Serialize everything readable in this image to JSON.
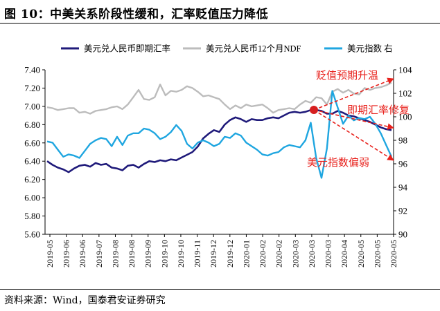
{
  "figure_title": "图 10：中美关系阶段性缓和，汇率贬值压力降低",
  "source_note": "资料来源：Wind，国泰君安证券研究",
  "chart_data": {
    "type": "line",
    "title": "",
    "legend_position": "top",
    "grid": false,
    "x_ticks": [
      "2019-05",
      "2019-06",
      "2019-06",
      "2019-07",
      "2019-08",
      "2019-08",
      "2019-09",
      "2019-10",
      "2019-10",
      "2019-11",
      "2019-12",
      "2019-12",
      "2020-01",
      "2020-02",
      "2020-02",
      "2020-03",
      "2020-03",
      "2020-03",
      "2020-04",
      "2020-05",
      "2020-05",
      "2020-05"
    ],
    "y_left": {
      "min": 5.6,
      "max": 7.4,
      "ticks": [
        "5.60",
        "5.80",
        "6.00",
        "6.20",
        "6.40",
        "6.60",
        "6.80",
        "7.00",
        "7.20",
        "7.40"
      ]
    },
    "y_right": {
      "min": 90,
      "max": 104,
      "ticks": [
        "90",
        "92",
        "94",
        "96",
        "98",
        "100",
        "102",
        "104"
      ]
    },
    "series": [
      {
        "name": "美元兑人民币即期汇率",
        "axis": "left",
        "color": "#1f1a7a",
        "values": [
          6.4,
          6.36,
          6.33,
          6.31,
          6.28,
          6.32,
          6.35,
          6.36,
          6.34,
          6.38,
          6.36,
          6.37,
          6.33,
          6.32,
          6.3,
          6.35,
          6.36,
          6.33,
          6.37,
          6.4,
          6.39,
          6.41,
          6.4,
          6.42,
          6.41,
          6.44,
          6.47,
          6.5,
          6.56,
          6.65,
          6.7,
          6.74,
          6.72,
          6.8,
          6.85,
          6.88,
          6.86,
          6.83,
          6.86,
          6.85,
          6.85,
          6.87,
          6.88,
          6.87,
          6.9,
          6.93,
          6.94,
          6.93,
          6.94,
          6.96,
          6.96,
          6.95,
          6.92,
          6.92,
          6.95,
          6.93,
          6.9,
          6.89,
          6.87,
          6.85,
          6.83,
          6.8,
          6.77,
          6.75,
          6.74
        ]
      },
      {
        "name": "美元兑人民币12个月NDF",
        "axis": "left",
        "color": "#bcbcbc",
        "values": [
          6.99,
          6.98,
          6.96,
          6.97,
          6.98,
          6.98,
          6.93,
          6.94,
          6.92,
          6.95,
          6.96,
          6.97,
          6.99,
          7.0,
          6.97,
          7.02,
          7.1,
          7.18,
          7.08,
          7.07,
          7.1,
          7.24,
          7.12,
          7.17,
          7.16,
          7.18,
          7.22,
          7.2,
          7.16,
          7.11,
          7.12,
          7.1,
          7.08,
          7.02,
          6.97,
          7.01,
          6.98,
          7.02,
          7.0,
          7.01,
          7.02,
          6.98,
          6.93,
          6.96,
          6.97,
          6.98,
          6.97,
          7.02,
          7.06,
          7.04,
          7.1,
          7.09,
          7.02,
          7.16,
          7.19,
          7.15,
          7.18,
          7.14,
          7.13,
          7.2,
          7.18,
          7.2,
          7.21,
          7.23,
          7.26
        ]
      },
      {
        "name": "美元指数 右",
        "axis": "right",
        "color": "#1fa6e0",
        "values": [
          97.9,
          97.8,
          97.2,
          96.6,
          96.8,
          96.7,
          96.5,
          97.1,
          97.7,
          98.0,
          98.2,
          98.1,
          97.5,
          98.3,
          97.6,
          98.4,
          98.6,
          98.6,
          99.0,
          98.9,
          98.6,
          98.1,
          98.3,
          98.7,
          99.3,
          98.8,
          97.7,
          97.3,
          97.8,
          98.0,
          97.8,
          97.5,
          97.7,
          98.3,
          98.2,
          98.6,
          98.4,
          97.8,
          97.5,
          97.2,
          96.8,
          96.7,
          96.9,
          97.0,
          97.4,
          97.6,
          97.5,
          97.4,
          98.0,
          99.5,
          96.5,
          94.8,
          97.3,
          102.2,
          100.8,
          99.4,
          100.1,
          99.7,
          99.9,
          99.8,
          100.0,
          99.4,
          98.6,
          97.6,
          96.6
        ]
      }
    ],
    "annotations": [
      {
        "text": "贬值预期升温"
      },
      {
        "text": "即期汇率修复"
      },
      {
        "text": "美元指数偏弱"
      }
    ]
  }
}
